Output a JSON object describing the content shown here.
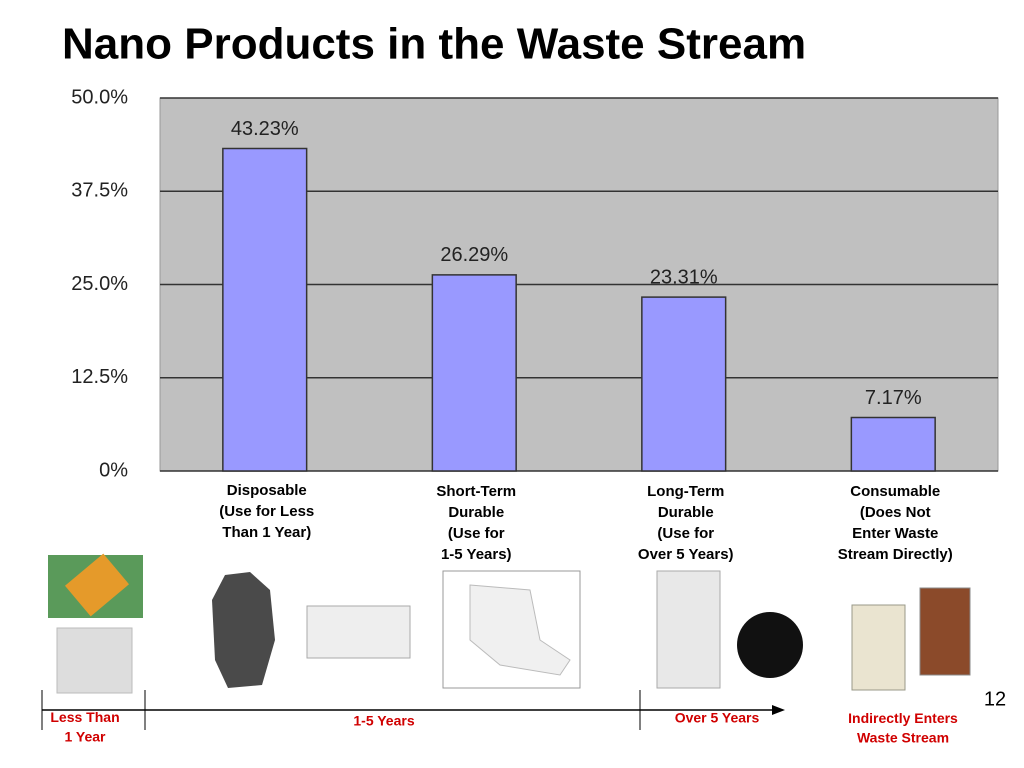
{
  "chart_data": {
    "type": "bar",
    "title": "Nano Products in the Waste Stream",
    "categories": [
      "Disposable\n(Use for Less\nThan 1 Year)",
      "Short-Term\nDurable\n(Use for\n1-5 Years)",
      "Long-Term\nDurable\n(Use for\nOver 5 Years)",
      "Consumable\n(Does Not\nEnter Waste\nStream Directly)"
    ],
    "values": [
      43.23,
      26.29,
      23.31,
      7.17
    ],
    "value_labels": [
      "43.23%",
      "26.29%",
      "23.31%",
      "7.17%"
    ],
    "color": "#9999ff",
    "ylim": [
      0,
      50
    ],
    "yticks": [
      {
        "value": 0,
        "label": "0%"
      },
      {
        "value": 12.5,
        "label": "12.5%"
      },
      {
        "value": 25,
        "label": "25.0%"
      },
      {
        "value": 37.5,
        "label": "37.5%"
      },
      {
        "value": 50,
        "label": "50.0%"
      }
    ],
    "grid": true
  },
  "timeline": [
    "Less Than\n1 Year",
    "1-5 Years",
    "Over 5 Years",
    "Indirectly Enters\nWaste Stream"
  ],
  "page_number": "12"
}
